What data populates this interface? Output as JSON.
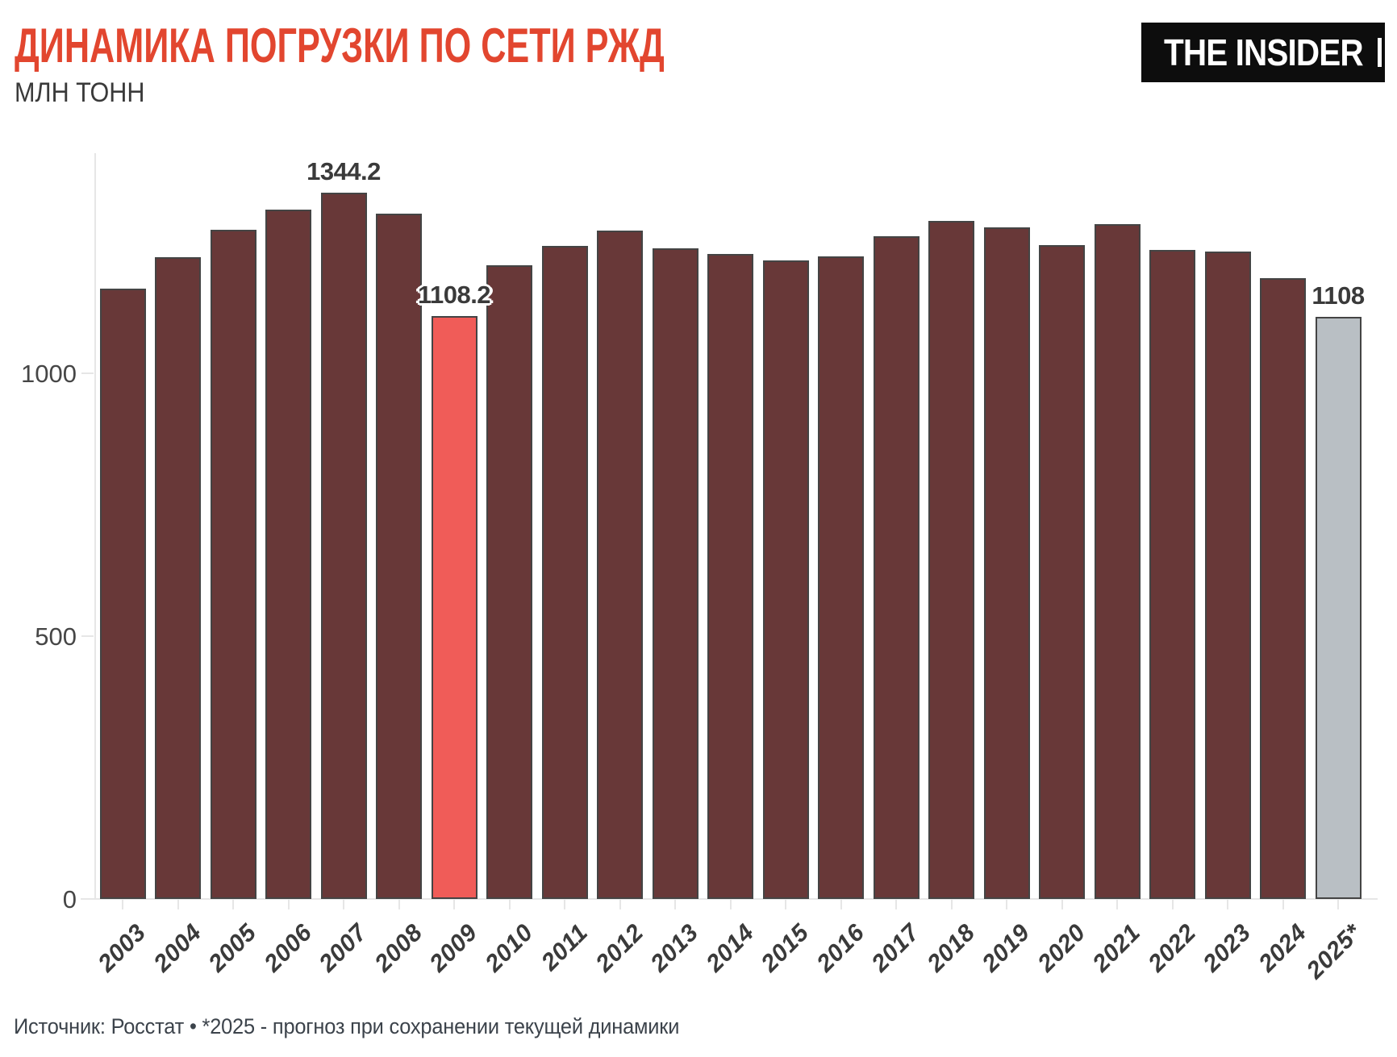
{
  "header": {
    "title": "ДИНАМИКА ПОГРУЗКИ ПО СЕТИ РЖД",
    "subtitle": "МЛН ТОНН",
    "logo_text": "THE INSIDER"
  },
  "footer": {
    "source": "Источник: Росстат • *2025 - прогноз при сохранении текущей динамики"
  },
  "colors": {
    "title": "#e2462f",
    "bar": "#683838",
    "bar_highlight": "#f05c58",
    "bar_forecast": "#b9bfc4",
    "bar_border": "#444444",
    "axis": "#e6e6e6",
    "text": "#3a3a3a"
  },
  "chart_data": {
    "type": "bar",
    "title": "ДИНАМИКА ПОГРУЗКИ ПО СЕТИ РЖД",
    "ylabel": "МЛН ТОНН",
    "categories": [
      "2003",
      "2004",
      "2005",
      "2006",
      "2007",
      "2008",
      "2009",
      "2010",
      "2011",
      "2012",
      "2013",
      "2014",
      "2015",
      "2016",
      "2017",
      "2018",
      "2019",
      "2020",
      "2021",
      "2022",
      "2023",
      "2024",
      "2025*"
    ],
    "values": [
      1161,
      1221,
      1273,
      1311,
      1344.2,
      1304,
      1108.2,
      1206,
      1242,
      1272,
      1237,
      1227,
      1214,
      1222,
      1261,
      1290,
      1278,
      1244,
      1283,
      1234,
      1232,
      1181,
      1108
    ],
    "highlighted_category": "2009",
    "forecast_category": "2025*",
    "ylim": [
      0,
      1400
    ],
    "y_ticks": [
      0,
      500,
      1000
    ],
    "grid": false,
    "legend": false,
    "data_labels": [
      {
        "category": "2007",
        "text": "1344.2",
        "halo": false
      },
      {
        "category": "2009",
        "text": "1108.2",
        "halo": true
      },
      {
        "category": "2025*",
        "text": "1108",
        "halo": false
      }
    ]
  }
}
